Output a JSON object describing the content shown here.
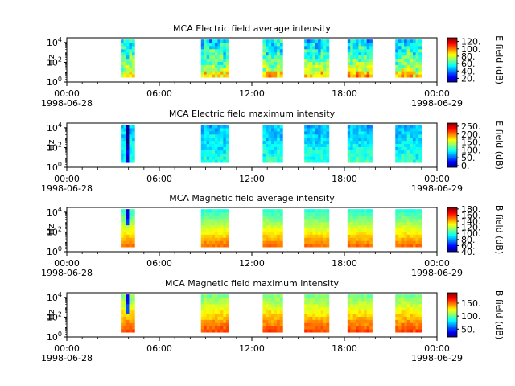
{
  "chart_data": [
    {
      "type": "heatmap",
      "title": "MCA  Electric field average intensity",
      "ylabel": "Hz",
      "y_scale": "log",
      "y_ticks": [
        "10^0",
        "10^2",
        "10^4"
      ],
      "ylim": [
        1,
        30000
      ],
      "x_ticks": [
        {
          "time": "00:00",
          "date": "1998-06-28"
        },
        {
          "time": "06:00",
          "date": ""
        },
        {
          "time": "12:00",
          "date": ""
        },
        {
          "time": "18:00",
          "date": ""
        },
        {
          "time": "00:00",
          "date": "1998-06-29"
        }
      ],
      "xlim_hours": [
        0,
        24
      ],
      "colorbar": {
        "label": "E field (dB)",
        "ticks": [
          20,
          40,
          60,
          80,
          100,
          120
        ],
        "tick_labels": [
          "20.",
          "40.",
          "60.",
          "80.",
          "100.",
          "120."
        ],
        "range": [
          10,
          130
        ],
        "colormap": "jet"
      },
      "segments_hours": [
        [
          3.5,
          4.4
        ],
        [
          8.7,
          10.5
        ],
        [
          12.7,
          14.0
        ],
        [
          15.4,
          17.0
        ],
        [
          18.2,
          19.8
        ],
        [
          21.3,
          23.0
        ]
      ],
      "pattern": "e_avg"
    },
    {
      "type": "heatmap",
      "title": "MCA  Electric field maximum intensity",
      "ylabel": "Hz",
      "y_scale": "log",
      "y_ticks": [
        "10^0",
        "10^2",
        "10^4"
      ],
      "ylim": [
        1,
        30000
      ],
      "x_ticks": [
        {
          "time": "00:00",
          "date": "1998-06-28"
        },
        {
          "time": "06:00",
          "date": ""
        },
        {
          "time": "12:00",
          "date": ""
        },
        {
          "time": "18:00",
          "date": ""
        },
        {
          "time": "00:00",
          "date": "1998-06-29"
        }
      ],
      "xlim_hours": [
        0,
        24
      ],
      "colorbar": {
        "label": "E field (dB)",
        "ticks": [
          0,
          50,
          100,
          150,
          200,
          250
        ],
        "tick_labels": [
          "0.",
          "50.",
          "100.",
          "150.",
          "200.",
          "250."
        ],
        "range": [
          -10,
          270
        ],
        "colormap": "jet"
      },
      "segments_hours": [
        [
          3.5,
          4.4
        ],
        [
          8.7,
          10.5
        ],
        [
          12.7,
          14.0
        ],
        [
          15.4,
          17.0
        ],
        [
          18.2,
          19.8
        ],
        [
          21.3,
          23.0
        ]
      ],
      "pattern": "e_max"
    },
    {
      "type": "heatmap",
      "title": "MCA  Magnetic field average intensity",
      "ylabel": "Hz",
      "y_scale": "log",
      "y_ticks": [
        "10^0",
        "10^2",
        "10^4"
      ],
      "ylim": [
        1,
        30000
      ],
      "x_ticks": [
        {
          "time": "00:00",
          "date": "1998-06-28"
        },
        {
          "time": "06:00",
          "date": ""
        },
        {
          "time": "12:00",
          "date": ""
        },
        {
          "time": "18:00",
          "date": ""
        },
        {
          "time": "00:00",
          "date": "1998-06-29"
        }
      ],
      "xlim_hours": [
        0,
        24
      ],
      "colorbar": {
        "label": "B field (dB)",
        "ticks": [
          40,
          60,
          80,
          100,
          120,
          140,
          160,
          180
        ],
        "tick_labels": [
          "40.",
          "60.",
          "80.",
          "100.",
          "120.",
          "140.",
          "160.",
          "180."
        ],
        "range": [
          40,
          185
        ],
        "colormap": "jet"
      },
      "segments_hours": [
        [
          3.5,
          4.4
        ],
        [
          8.7,
          10.5
        ],
        [
          12.7,
          14.0
        ],
        [
          15.4,
          17.0
        ],
        [
          18.2,
          19.8
        ],
        [
          21.3,
          23.0
        ]
      ],
      "pattern": "b_avg"
    },
    {
      "type": "heatmap",
      "title": "MCA  Magnetic field maximum intensity",
      "ylabel": "Hz",
      "y_scale": "log",
      "y_ticks": [
        "10^0",
        "10^2",
        "10^4"
      ],
      "ylim": [
        1,
        30000
      ],
      "x_ticks": [
        {
          "time": "00:00",
          "date": "1998-06-28"
        },
        {
          "time": "06:00",
          "date": ""
        },
        {
          "time": "12:00",
          "date": ""
        },
        {
          "time": "18:00",
          "date": ""
        },
        {
          "time": "00:00",
          "date": "1998-06-29"
        }
      ],
      "xlim_hours": [
        0,
        24
      ],
      "colorbar": {
        "label": "B field (dB)",
        "ticks": [
          50,
          100,
          150
        ],
        "tick_labels": [
          "50.",
          "100.",
          "150."
        ],
        "range": [
          20,
          190
        ],
        "colormap": "jet"
      },
      "segments_hours": [
        [
          3.5,
          4.4
        ],
        [
          8.7,
          10.5
        ],
        [
          12.7,
          14.0
        ],
        [
          15.4,
          17.0
        ],
        [
          18.2,
          19.8
        ],
        [
          21.3,
          23.0
        ]
      ],
      "pattern": "b_max"
    }
  ]
}
